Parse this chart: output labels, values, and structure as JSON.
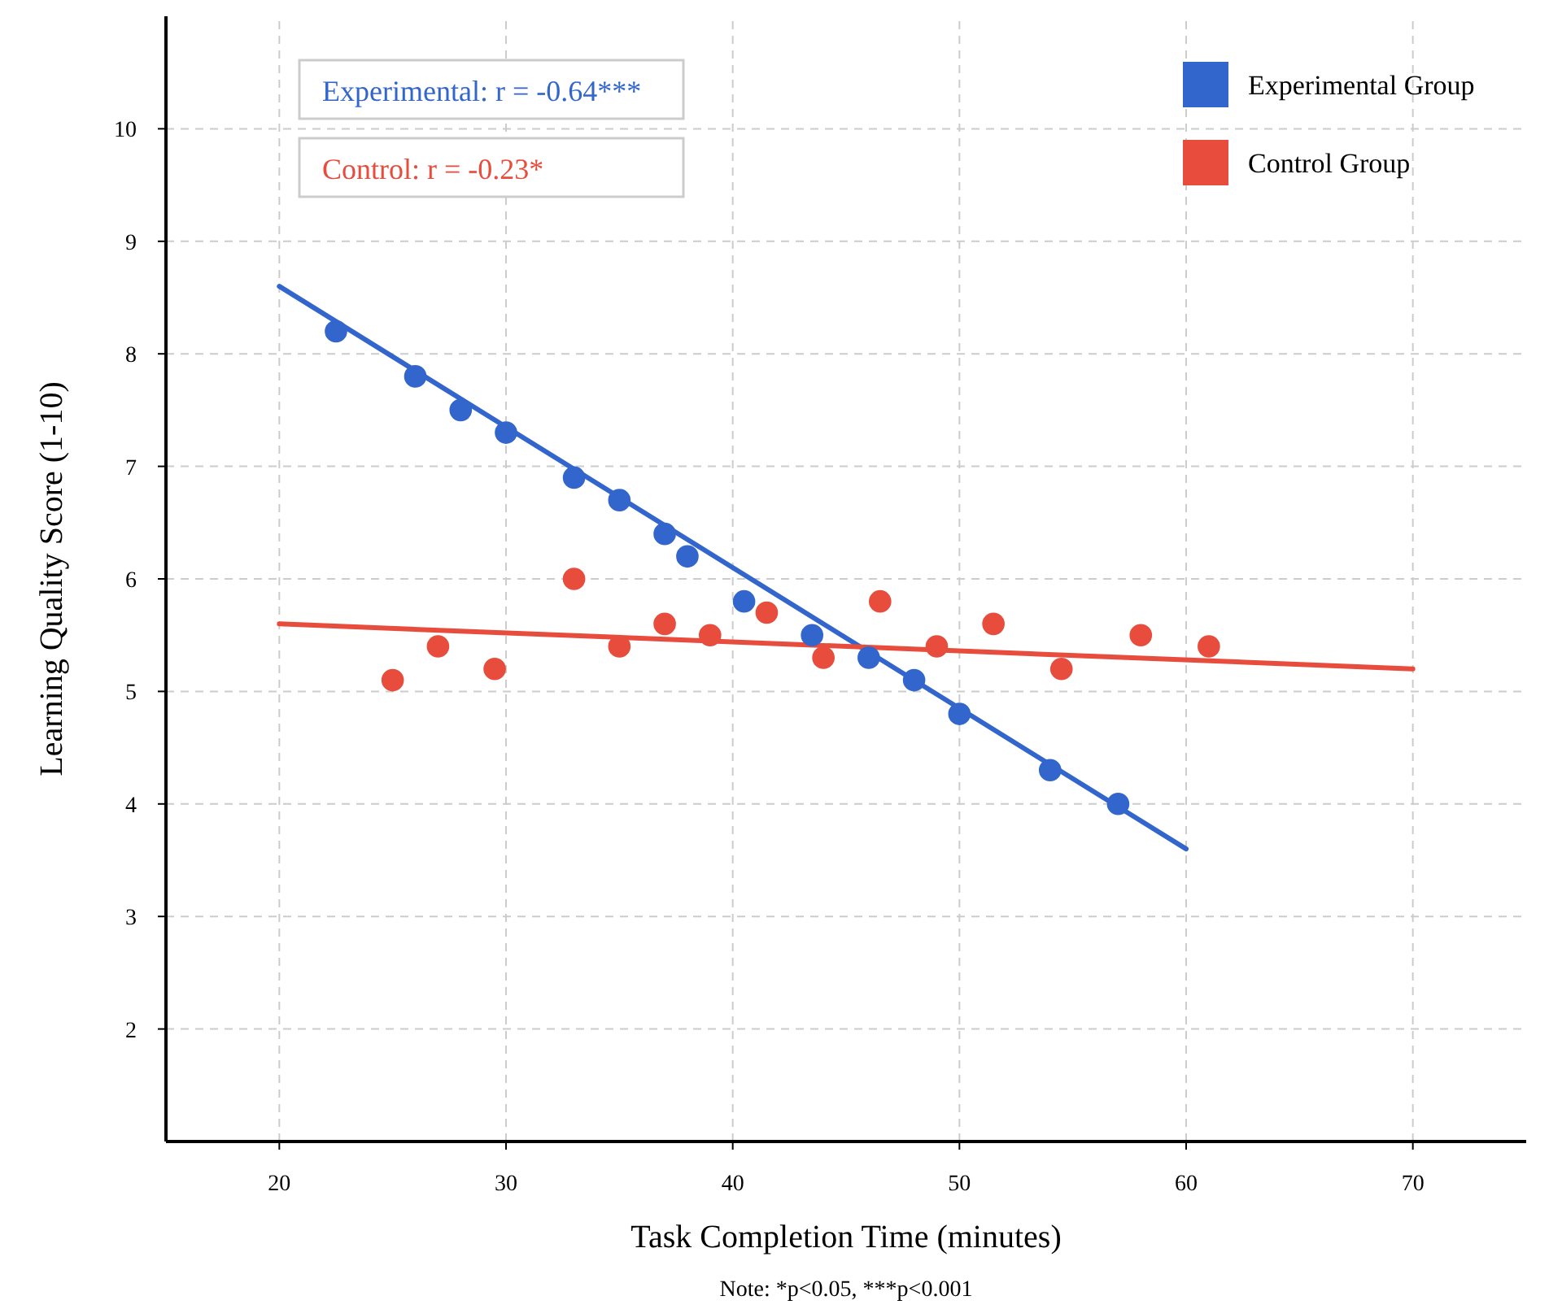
{
  "chart_data": {
    "type": "scatter",
    "xlabel": "Task Completion Time (minutes)",
    "ylabel": "Learning Quality Score (1-10)",
    "xlim": [
      15,
      75
    ],
    "ylim": [
      1,
      11
    ],
    "xticks": [
      20,
      30,
      40,
      50,
      60,
      70
    ],
    "yticks": [
      2,
      3,
      4,
      5,
      6,
      7,
      8,
      9,
      10
    ],
    "grid": true,
    "legend": "top right",
    "series": [
      {
        "name": "Experimental Group",
        "color": "#3366cc",
        "marker": "circle",
        "x": [
          22.5,
          26,
          28,
          30,
          33,
          35,
          37,
          38,
          40.5,
          43.5,
          46,
          48,
          50,
          54,
          57
        ],
        "values": [
          8.2,
          7.8,
          7.5,
          7.3,
          6.9,
          6.7,
          6.4,
          6.2,
          5.8,
          5.5,
          5.3,
          5.1,
          4.8,
          4.3,
          4.0
        ]
      },
      {
        "name": "Control Group",
        "color": "#e74c3c",
        "marker": "circle",
        "x": [
          25,
          27,
          29.5,
          33,
          35,
          37,
          39,
          41.5,
          44,
          46.5,
          49,
          51.5,
          54.5,
          58,
          61
        ],
        "values": [
          5.1,
          5.4,
          5.2,
          6.0,
          5.4,
          5.6,
          5.5,
          5.7,
          5.3,
          5.8,
          5.4,
          5.6,
          5.2,
          5.5,
          5.4
        ]
      },
      {
        "color": "#3366cc",
        "type": "line",
        "x": [
          20,
          60
        ],
        "values": [
          8.6,
          3.6
        ]
      },
      {
        "color": "#e74c3c",
        "type": "line",
        "x": [
          20,
          70
        ],
        "values": [
          5.6,
          5.2
        ]
      }
    ],
    "annotations": [
      "Experimental: r = -0.64***",
      "Control: r = -0.23*",
      "Note: *p<0.05, ***p<0.001"
    ]
  }
}
